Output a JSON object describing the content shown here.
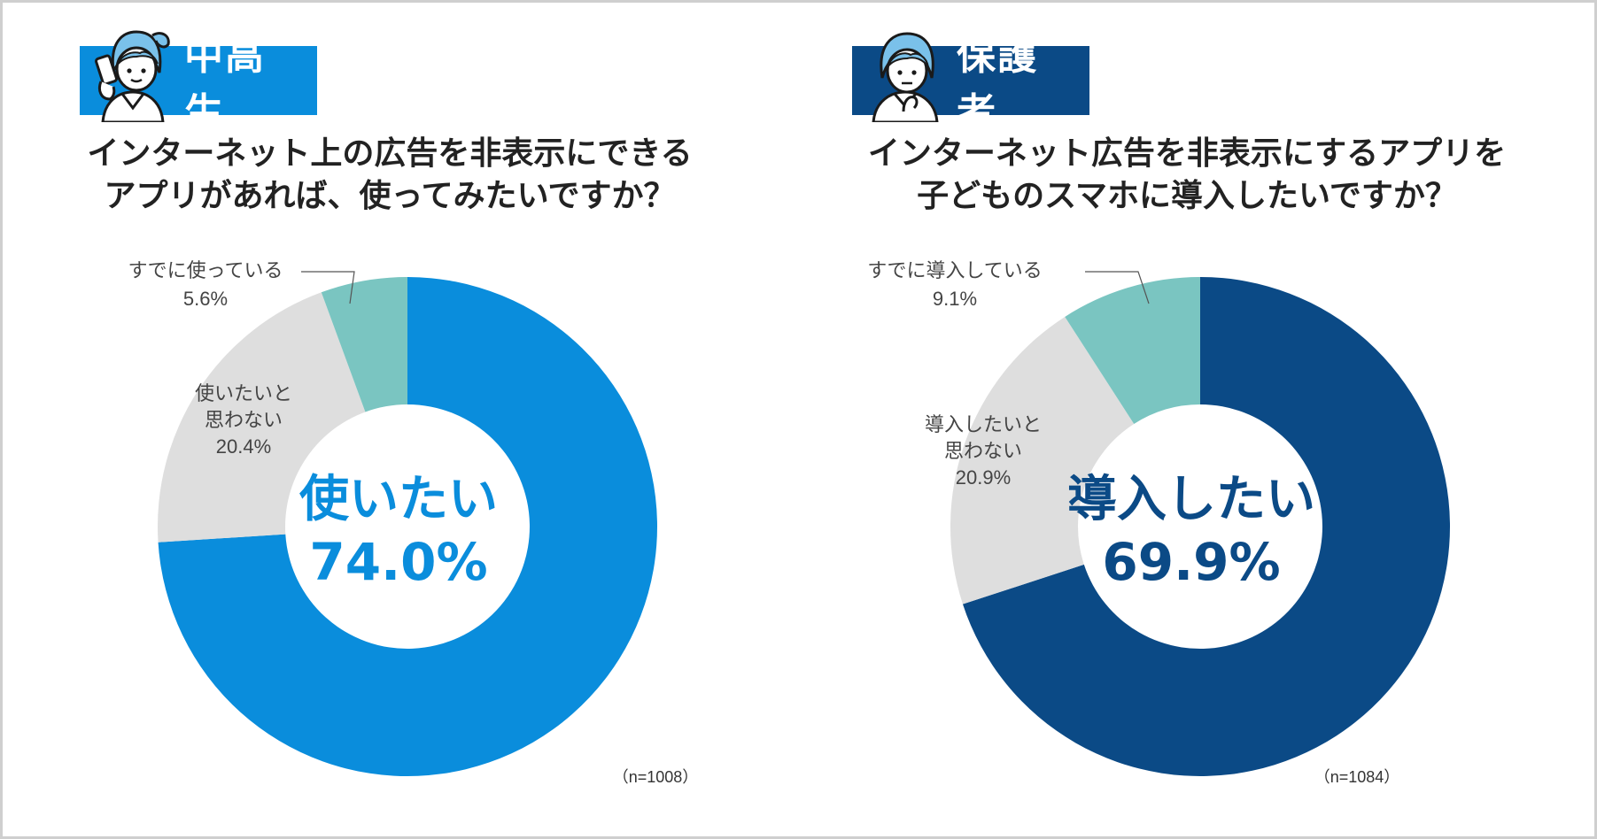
{
  "colors": {
    "student_main": "#0a8ddc",
    "parent_main": "#0b4a86",
    "gray": "#dedede",
    "teal": "#7ac5c1",
    "frame": "#cfcfcf"
  },
  "chart_data": [
    {
      "type": "pie",
      "badge": "中高生",
      "title_line1": "インターネット上の広告を非表示にできる",
      "title_line2": "アプリがあれば、使ってみたいですか？",
      "center_label": "使いたい",
      "center_value": "74.0%",
      "n": "（n=1008）",
      "slices": [
        {
          "name": "使いたい",
          "value": 74.0,
          "color": "#0a8ddc"
        },
        {
          "name": "使いたいと思わない",
          "value": 20.4,
          "color": "#dedede",
          "label_lines": [
            "使いたいと",
            "思わない"
          ],
          "pct": "20.4%"
        },
        {
          "name": "すでに使っている",
          "value": 5.6,
          "color": "#7ac5c1",
          "label_lines": [
            "すでに使っている"
          ],
          "pct": "5.6%"
        }
      ]
    },
    {
      "type": "pie",
      "badge": "保護者",
      "title_line1": "インターネット広告を非表示にするアプリを",
      "title_line2": "子どものスマホに導入したいですか？",
      "center_label": "導入したい",
      "center_value": "69.9%",
      "n": "（n=1084）",
      "slices": [
        {
          "name": "導入したい",
          "value": 69.9,
          "color": "#0b4a86"
        },
        {
          "name": "導入したいと思わない",
          "value": 20.9,
          "color": "#dedede",
          "label_lines": [
            "導入したいと",
            "思わない"
          ],
          "pct": "20.9%"
        },
        {
          "name": "すでに導入している",
          "value": 9.1,
          "color": "#7ac5c1",
          "label_lines": [
            "すでに導入している"
          ],
          "pct": "9.1%"
        }
      ]
    }
  ]
}
